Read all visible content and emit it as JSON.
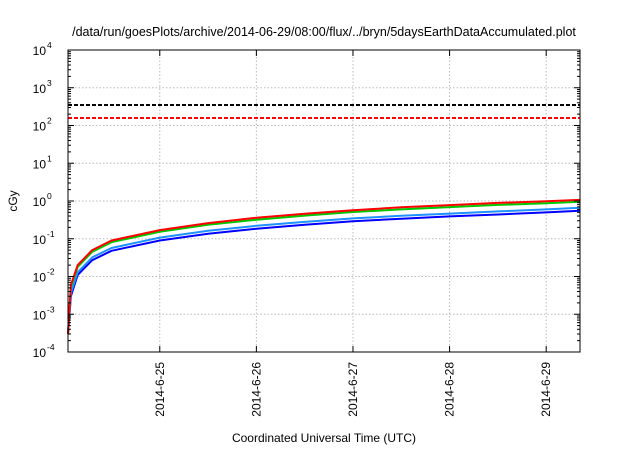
{
  "chart_data": {
    "type": "line",
    "title": "/data/run/goesPlots/archive/2014-06-29/08:00/flux/../bryn/5daysEarthDataAccumulated.plot",
    "xlabel": "Coordinated Universal Time (UTC)",
    "ylabel": "cGy",
    "yscale": "log",
    "ylim": [
      0.0001,
      10000
    ],
    "xlim": [
      24.05,
      29.35
    ],
    "x_unit": "day of June 2014",
    "grid": true,
    "x_ticks": [
      {
        "value": 25,
        "label": "2014-6-25"
      },
      {
        "value": 26,
        "label": "2014-6-26"
      },
      {
        "value": 27,
        "label": "2014-6-27"
      },
      {
        "value": 28,
        "label": "2014-6-28"
      },
      {
        "value": 29,
        "label": "2014-6-29"
      }
    ],
    "y_ticks": [
      {
        "value": 0.0001,
        "base": "10",
        "exp": "-4"
      },
      {
        "value": 0.001,
        "base": "10",
        "exp": "-3"
      },
      {
        "value": 0.01,
        "base": "10",
        "exp": "-2"
      },
      {
        "value": 0.1,
        "base": "10",
        "exp": "-1"
      },
      {
        "value": 1,
        "base": "10",
        "exp": "0"
      },
      {
        "value": 10,
        "base": "10",
        "exp": "1"
      },
      {
        "value": 100,
        "base": "10",
        "exp": "2"
      },
      {
        "value": 1000,
        "base": "10",
        "exp": "3"
      },
      {
        "value": 10000,
        "base": "10",
        "exp": "4"
      }
    ],
    "thresholds": [
      {
        "name": "threshold-black",
        "value": 350,
        "color": "#000000"
      },
      {
        "name": "threshold-red",
        "value": 158,
        "color": "#ff0000"
      }
    ],
    "x": [
      24.05,
      24.08,
      24.15,
      24.3,
      24.5,
      25.0,
      25.5,
      26.0,
      26.5,
      27.0,
      27.5,
      28.0,
      28.5,
      29.0,
      29.35
    ],
    "series": [
      {
        "name": "blue",
        "color": "#0000ff",
        "values": [
          0.0003,
          0.003,
          0.011,
          0.027,
          0.048,
          0.09,
          0.135,
          0.185,
          0.235,
          0.29,
          0.34,
          0.39,
          0.44,
          0.5,
          0.55
        ]
      },
      {
        "name": "lightblue",
        "color": "#1e90ff",
        "values": [
          0.0003,
          0.0036,
          0.013,
          0.032,
          0.057,
          0.107,
          0.162,
          0.22,
          0.28,
          0.345,
          0.405,
          0.465,
          0.53,
          0.6,
          0.66
        ]
      },
      {
        "name": "green",
        "color": "#00c800",
        "values": [
          0.0003,
          0.0052,
          0.018,
          0.045,
          0.081,
          0.153,
          0.234,
          0.32,
          0.41,
          0.51,
          0.6,
          0.69,
          0.79,
          0.87,
          0.95
        ]
      },
      {
        "name": "red",
        "color": "#ff0000",
        "values": [
          0.0003,
          0.006,
          0.02,
          0.05,
          0.09,
          0.17,
          0.26,
          0.36,
          0.46,
          0.57,
          0.68,
          0.78,
          0.89,
          0.98,
          1.07
        ]
      }
    ]
  }
}
